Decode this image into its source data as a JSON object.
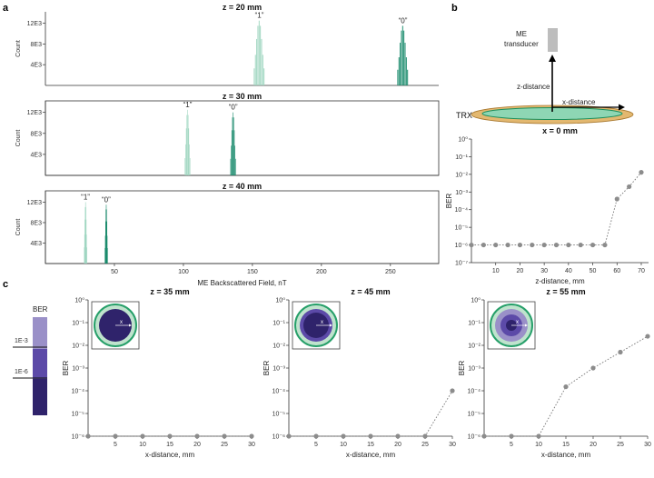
{
  "panels": {
    "a": "a",
    "b": "b",
    "c": "c"
  },
  "colors": {
    "one": "#9fd6c0",
    "zero": "#17896a",
    "axis": "#333333",
    "point": "#8c8c8c"
  },
  "chart_data": [
    {
      "id": "hist",
      "type": "bar",
      "xlabel": "ME Backscattered Field, nT",
      "ylabel": "Count",
      "xlim": [
        0,
        285
      ],
      "xticks": [
        "50",
        "100",
        "150",
        "200",
        "250"
      ],
      "yticks": [
        "4E3",
        "8E3",
        "12E3"
      ],
      "subplots": [
        {
          "title": "z = 20 mm",
          "series": [
            {
              "name": "“1”",
              "center": 155,
              "width": 8,
              "peak": 12500
            },
            {
              "name": "“0”",
              "center": 259,
              "width": 8,
              "peak": 11500
            }
          ]
        },
        {
          "title": "z = 30 mm",
          "series": [
            {
              "name": "“1”",
              "center": 103,
              "width": 4,
              "peak": 12500
            },
            {
              "name": "“0”",
              "center": 136,
              "width": 4,
              "peak": 12000
            }
          ]
        },
        {
          "title": "z = 40 mm",
          "series": [
            {
              "name": "“1”",
              "center": 29,
              "width": 2,
              "peak": 12000
            },
            {
              "name": "“0”",
              "center": 44,
              "width": 2,
              "peak": 11500
            }
          ]
        }
      ]
    },
    {
      "id": "ber_z",
      "type": "line",
      "title": "x = 0 mm",
      "xlabel": "z-distance, mm",
      "ylabel": "BER",
      "xlim": [
        0,
        73
      ],
      "ylim_log10": [
        -7,
        0
      ],
      "xticks": [
        "10",
        "20",
        "30",
        "40",
        "50",
        "60",
        "70"
      ],
      "yticks": [
        "10⁰",
        "10⁻¹",
        "10⁻²",
        "10⁻³",
        "10⁻⁴",
        "10⁻⁵",
        "10⁻⁶",
        "10⁻⁷"
      ],
      "x": [
        0,
        5,
        10,
        15,
        20,
        25,
        30,
        35,
        40,
        45,
        50,
        55,
        60,
        65,
        70
      ],
      "y": [
        1e-06,
        1e-06,
        1e-06,
        1e-06,
        1e-06,
        1e-06,
        1e-06,
        1e-06,
        1e-06,
        1e-06,
        1e-06,
        1e-06,
        0.0004,
        0.002,
        0.013
      ]
    },
    {
      "id": "ber_x35",
      "type": "line",
      "title": "z = 35 mm",
      "xlabel": "x-distance, mm",
      "ylabel": "BER",
      "xlim": [
        0,
        30
      ],
      "ylim_log10": [
        -6,
        0
      ],
      "xticks": [
        "5",
        "10",
        "15",
        "20",
        "25",
        "30"
      ],
      "yticks": [
        "10⁰",
        "10⁻¹",
        "10⁻²",
        "10⁻³",
        "10⁻⁴",
        "10⁻⁵",
        "10⁻⁶"
      ],
      "x": [
        0,
        5,
        10,
        15,
        20,
        25,
        30
      ],
      "y": [
        1e-06,
        1e-06,
        1e-06,
        1e-06,
        1e-06,
        1e-06,
        1e-06
      ],
      "inset_rings": 0
    },
    {
      "id": "ber_x45",
      "type": "line",
      "title": "z = 45 mm",
      "xlabel": "x-distance, mm",
      "ylabel": "BER",
      "xlim": [
        0,
        30
      ],
      "ylim_log10": [
        -6,
        0
      ],
      "xticks": [
        "5",
        "10",
        "15",
        "20",
        "25",
        "30"
      ],
      "yticks": [
        "10⁰",
        "10⁻¹",
        "10⁻²",
        "10⁻³",
        "10⁻⁴",
        "10⁻⁵",
        "10⁻⁶"
      ],
      "x": [
        0,
        5,
        10,
        15,
        20,
        25,
        30
      ],
      "y": [
        1e-06,
        1e-06,
        1e-06,
        1e-06,
        1e-06,
        1e-06,
        0.0001
      ],
      "inset_rings": 1
    },
    {
      "id": "ber_x55",
      "type": "line",
      "title": "z = 55 mm",
      "xlabel": "x-distance, mm",
      "ylabel": "BER",
      "xlim": [
        0,
        30
      ],
      "ylim_log10": [
        -6,
        0
      ],
      "xticks": [
        "5",
        "10",
        "15",
        "20",
        "25",
        "30"
      ],
      "yticks": [
        "10⁰",
        "10⁻¹",
        "10⁻²",
        "10⁻³",
        "10⁻⁴",
        "10⁻⁵",
        "10⁻⁶"
      ],
      "x": [
        0,
        5,
        10,
        15,
        20,
        25,
        30
      ],
      "y": [
        1e-06,
        1e-06,
        1e-06,
        0.00015,
        0.001,
        0.005,
        0.025
      ],
      "inset_rings": 2
    }
  ],
  "diagram": {
    "transducer_label": [
      "ME",
      "transducer"
    ],
    "z_label": "z-distance",
    "x_label": "x-distance",
    "trx_label": "TRX"
  },
  "inset_labels": {
    "x": "x"
  },
  "colorbar": {
    "title": "BER",
    "ticks": [
      "1E-3",
      "1E-6"
    ],
    "colors": [
      "#9a90c8",
      "#5c4aa8",
      "#2f236b"
    ]
  }
}
